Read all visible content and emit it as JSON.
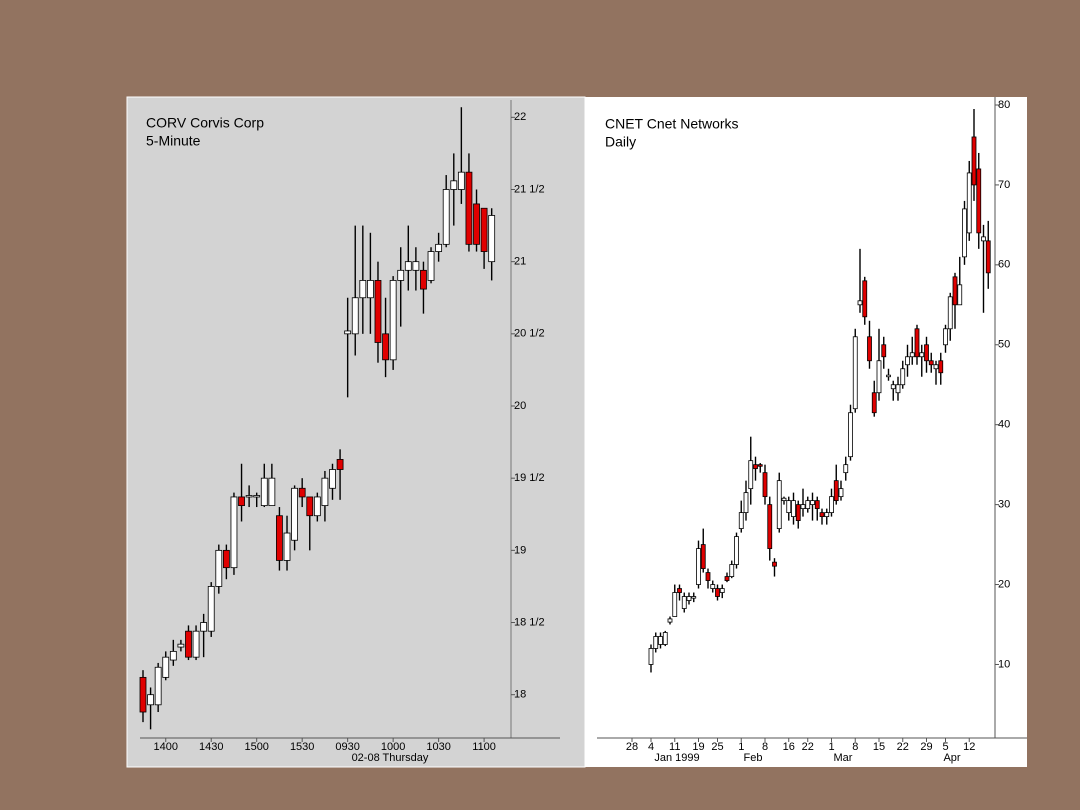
{
  "chart_data": [
    {
      "type": "candlestick",
      "title": "CORV Corvis Corp",
      "subtitle": "5-Minute",
      "categories": [
        null,
        null,
        null,
        "1400",
        null,
        null,
        null,
        null,
        null,
        "1430",
        null,
        null,
        null,
        null,
        null,
        "1500",
        null,
        null,
        null,
        null,
        null,
        "1530",
        null,
        null,
        null,
        null,
        null,
        "0930",
        null,
        null,
        null,
        null,
        null,
        "1000",
        null,
        null,
        null,
        null,
        null,
        "1030",
        null,
        null,
        null,
        null,
        null,
        "1100",
        null
      ],
      "x_group_labels": [
        "02-08 Thursday"
      ],
      "open": [
        18.12,
        17.93,
        17.93,
        18.12,
        18.24,
        18.33,
        18.44,
        18.26,
        18.44,
        18.44,
        18.75,
        19.0,
        18.88,
        19.37,
        19.37,
        19.37,
        19.31,
        19.31,
        19.24,
        18.93,
        19.07,
        19.43,
        19.37,
        19.24,
        19.31,
        19.43,
        19.63,
        20.5,
        20.5,
        20.75,
        20.75,
        20.87,
        20.5,
        20.32,
        20.87,
        20.94,
        20.94,
        20.94,
        20.87,
        21.07,
        21.12,
        21.5,
        21.5,
        21.62,
        21.4,
        21.37,
        21.0
      ],
      "high": [
        18.17,
        18.05,
        18.22,
        18.3,
        18.38,
        18.38,
        18.48,
        18.48,
        18.56,
        18.78,
        19.04,
        19.04,
        19.4,
        19.6,
        19.45,
        19.4,
        19.6,
        19.6,
        19.3,
        19.24,
        19.45,
        19.5,
        19.37,
        19.4,
        19.55,
        19.6,
        19.7,
        20.75,
        21.25,
        21.25,
        21.2,
        21.0,
        20.75,
        20.9,
        21.1,
        21.25,
        21.1,
        21.0,
        21.1,
        21.2,
        21.6,
        21.75,
        22.07,
        21.75,
        21.5,
        21.37,
        21.37
      ],
      "low": [
        17.81,
        17.76,
        17.88,
        18.1,
        18.2,
        18.3,
        18.24,
        18.24,
        18.26,
        18.4,
        18.7,
        18.8,
        18.83,
        19.2,
        19.3,
        19.3,
        19.3,
        19.31,
        18.86,
        18.86,
        19.0,
        19.3,
        19.0,
        19.2,
        19.2,
        19.35,
        19.35,
        20.06,
        20.35,
        20.5,
        20.5,
        20.3,
        20.2,
        20.25,
        20.55,
        20.8,
        20.8,
        20.64,
        20.85,
        21.0,
        21.1,
        21.25,
        21.4,
        21.07,
        21.07,
        20.95,
        20.87
      ],
      "close": [
        17.88,
        18.0,
        18.19,
        18.26,
        18.3,
        18.35,
        18.26,
        18.44,
        18.5,
        18.75,
        19.0,
        18.88,
        19.37,
        19.31,
        19.38,
        19.38,
        19.5,
        19.5,
        18.93,
        19.12,
        19.43,
        19.37,
        19.24,
        19.37,
        19.5,
        19.56,
        19.56,
        20.52,
        20.75,
        20.87,
        20.87,
        20.44,
        20.32,
        20.87,
        20.94,
        21.0,
        21.0,
        20.81,
        21.07,
        21.12,
        21.5,
        21.56,
        21.62,
        21.12,
        21.12,
        21.07,
        21.32
      ],
      "up_color": "#ffffff",
      "down_color": "#e00000",
      "background": "#d3d3d3",
      "ylim": [
        17.7,
        22.12
      ],
      "yticks": [
        18,
        {
          "value": 18.5,
          "label": "18 1/2"
        },
        19,
        {
          "value": 19.5,
          "label": "19 1/2"
        },
        20,
        {
          "value": 20.5,
          "label": "20 1/2"
        },
        21,
        {
          "value": 21.5,
          "label": "21 1/2"
        },
        22
      ]
    },
    {
      "type": "candlestick",
      "title": "CNET Cnet Networks",
      "subtitle": "Daily",
      "categories": [
        "28",
        null,
        null,
        null,
        "4",
        null,
        null,
        null,
        null,
        "11",
        null,
        null,
        null,
        null,
        "19",
        null,
        null,
        null,
        "25",
        null,
        null,
        null,
        null,
        "1",
        null,
        null,
        null,
        null,
        "8",
        null,
        null,
        null,
        null,
        "16",
        null,
        null,
        null,
        "22",
        null,
        null,
        null,
        null,
        "1",
        null,
        null,
        null,
        null,
        "8",
        null,
        null,
        null,
        null,
        "15",
        null,
        null,
        null,
        null,
        "22",
        null,
        null,
        null,
        null,
        "29",
        null,
        null,
        null,
        "5",
        null,
        null,
        null,
        null,
        "12",
        null,
        null,
        null,
        null
      ],
      "x_group_labels": [
        "Jan 1999",
        "Feb",
        "Mar",
        "Apr"
      ],
      "open": [
        null,
        null,
        null,
        null,
        10,
        12,
        12.5,
        12.5,
        15.3,
        16,
        19.5,
        17,
        18,
        18.3,
        20,
        25,
        21.5,
        19.5,
        19.5,
        19,
        21,
        21,
        22.5,
        27,
        29,
        32,
        35,
        35,
        34,
        30,
        22.8,
        27,
        30.5,
        29,
        28.5,
        30,
        29.5,
        29.5,
        30,
        30.5,
        29,
        28.5,
        29,
        33,
        31,
        34,
        36,
        42,
        55,
        58,
        51,
        44,
        44,
        50,
        46,
        44.5,
        44,
        45,
        47.5,
        48.5,
        52,
        48.5,
        50,
        48,
        47,
        48,
        50,
        52,
        58.5,
        55,
        61,
        64,
        76,
        72,
        63,
        63
      ],
      "high": [
        null,
        null,
        null,
        null,
        12.5,
        14,
        14,
        14.2,
        16,
        20,
        20,
        19,
        19,
        19,
        25.5,
        27,
        22,
        20.5,
        20,
        20,
        21.5,
        23,
        26.5,
        30.5,
        33,
        38.5,
        36,
        35.2,
        35,
        31,
        23.3,
        34,
        31,
        31,
        31.5,
        30.5,
        32,
        31,
        31.5,
        31,
        29.5,
        29.5,
        32,
        35,
        33,
        36,
        42.5,
        52,
        62,
        58.5,
        53,
        45.5,
        52,
        51,
        47,
        45.5,
        46,
        48,
        50,
        51,
        52.5,
        50,
        51,
        49,
        48,
        49,
        52.5,
        56.5,
        59,
        61,
        68,
        73,
        79.5,
        74,
        65,
        65.5
      ],
      "low": [
        null,
        null,
        null,
        null,
        9,
        11.5,
        12,
        12.3,
        15,
        16,
        18,
        16.5,
        17.5,
        17.8,
        19.5,
        21.5,
        19.5,
        19,
        18,
        18.3,
        20.3,
        20.8,
        22,
        26.5,
        28,
        30,
        33,
        34,
        30,
        23,
        21,
        26.5,
        30,
        28,
        27.5,
        27,
        28.5,
        29,
        28,
        28,
        27.5,
        27.5,
        28.5,
        30,
        30.5,
        33,
        35.5,
        41.5,
        54,
        52.5,
        47,
        41,
        43,
        47,
        45.5,
        43,
        43,
        44.5,
        46,
        47.5,
        47.5,
        46,
        46.5,
        46.5,
        45,
        45,
        49,
        50.5,
        52,
        55,
        60,
        63,
        68,
        62,
        54,
        57
      ],
      "close": [
        null,
        null,
        null,
        null,
        12,
        13.5,
        13.5,
        14,
        15.7,
        19,
        19,
        18.5,
        18.5,
        18.5,
        24.5,
        22,
        20.5,
        20,
        18.5,
        19.5,
        20.5,
        22.5,
        26,
        29,
        31.5,
        35.5,
        34.5,
        34.8,
        31,
        24.5,
        22.3,
        33,
        30.8,
        30.5,
        30.5,
        28,
        30,
        30.5,
        30.5,
        29.5,
        28.5,
        29,
        31,
        30.5,
        32,
        35,
        41.5,
        51,
        55.5,
        53.5,
        48,
        41.5,
        48,
        48.5,
        46.2,
        45,
        45,
        47,
        48.5,
        49,
        48.5,
        49,
        48,
        47.5,
        47.5,
        46.5,
        52,
        56,
        55,
        57.5,
        67,
        71.5,
        70,
        64,
        63.5,
        59
      ],
      "up_color": "#ffffff",
      "down_color": "#e00000",
      "background": "#ffffff",
      "ylim": [
        0.8,
        81
      ],
      "yticks": [
        10,
        20,
        30,
        40,
        50,
        60,
        70,
        80
      ]
    }
  ]
}
